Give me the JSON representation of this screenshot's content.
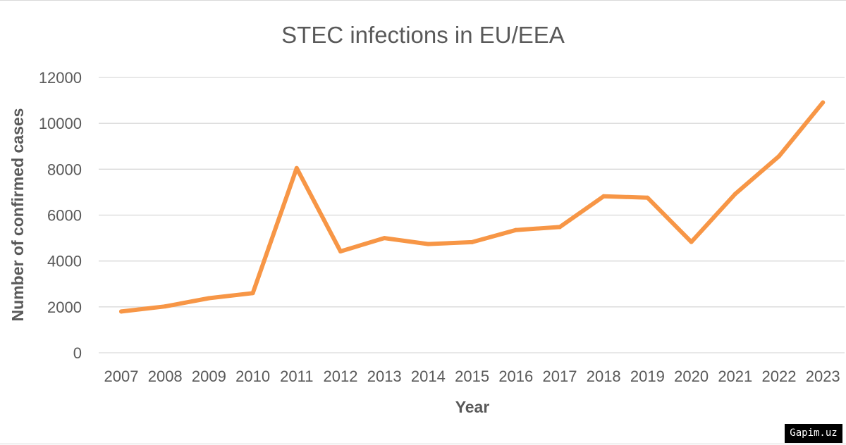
{
  "chart_data": {
    "type": "line",
    "title": "STEC infections in EU/EEA",
    "xlabel": "Year",
    "ylabel": "Number of confirmed cases",
    "x": [
      "2007",
      "2008",
      "2009",
      "2010",
      "2011",
      "2012",
      "2013",
      "2014",
      "2015",
      "2016",
      "2017",
      "2018",
      "2019",
      "2020",
      "2021",
      "2022",
      "2023"
    ],
    "series": [
      {
        "values": [
          1800,
          2020,
          2380,
          2600,
          8050,
          4420,
          5000,
          4740,
          4820,
          5350,
          5480,
          6820,
          6760,
          4830,
          6920,
          8570,
          10910
        ],
        "color": "#f79646"
      }
    ],
    "ylim": [
      0,
      12000
    ],
    "yticks": [
      0,
      2000,
      4000,
      6000,
      8000,
      10000,
      12000
    ],
    "grid": true,
    "legend": "none"
  },
  "watermark": "Gapim.uz"
}
